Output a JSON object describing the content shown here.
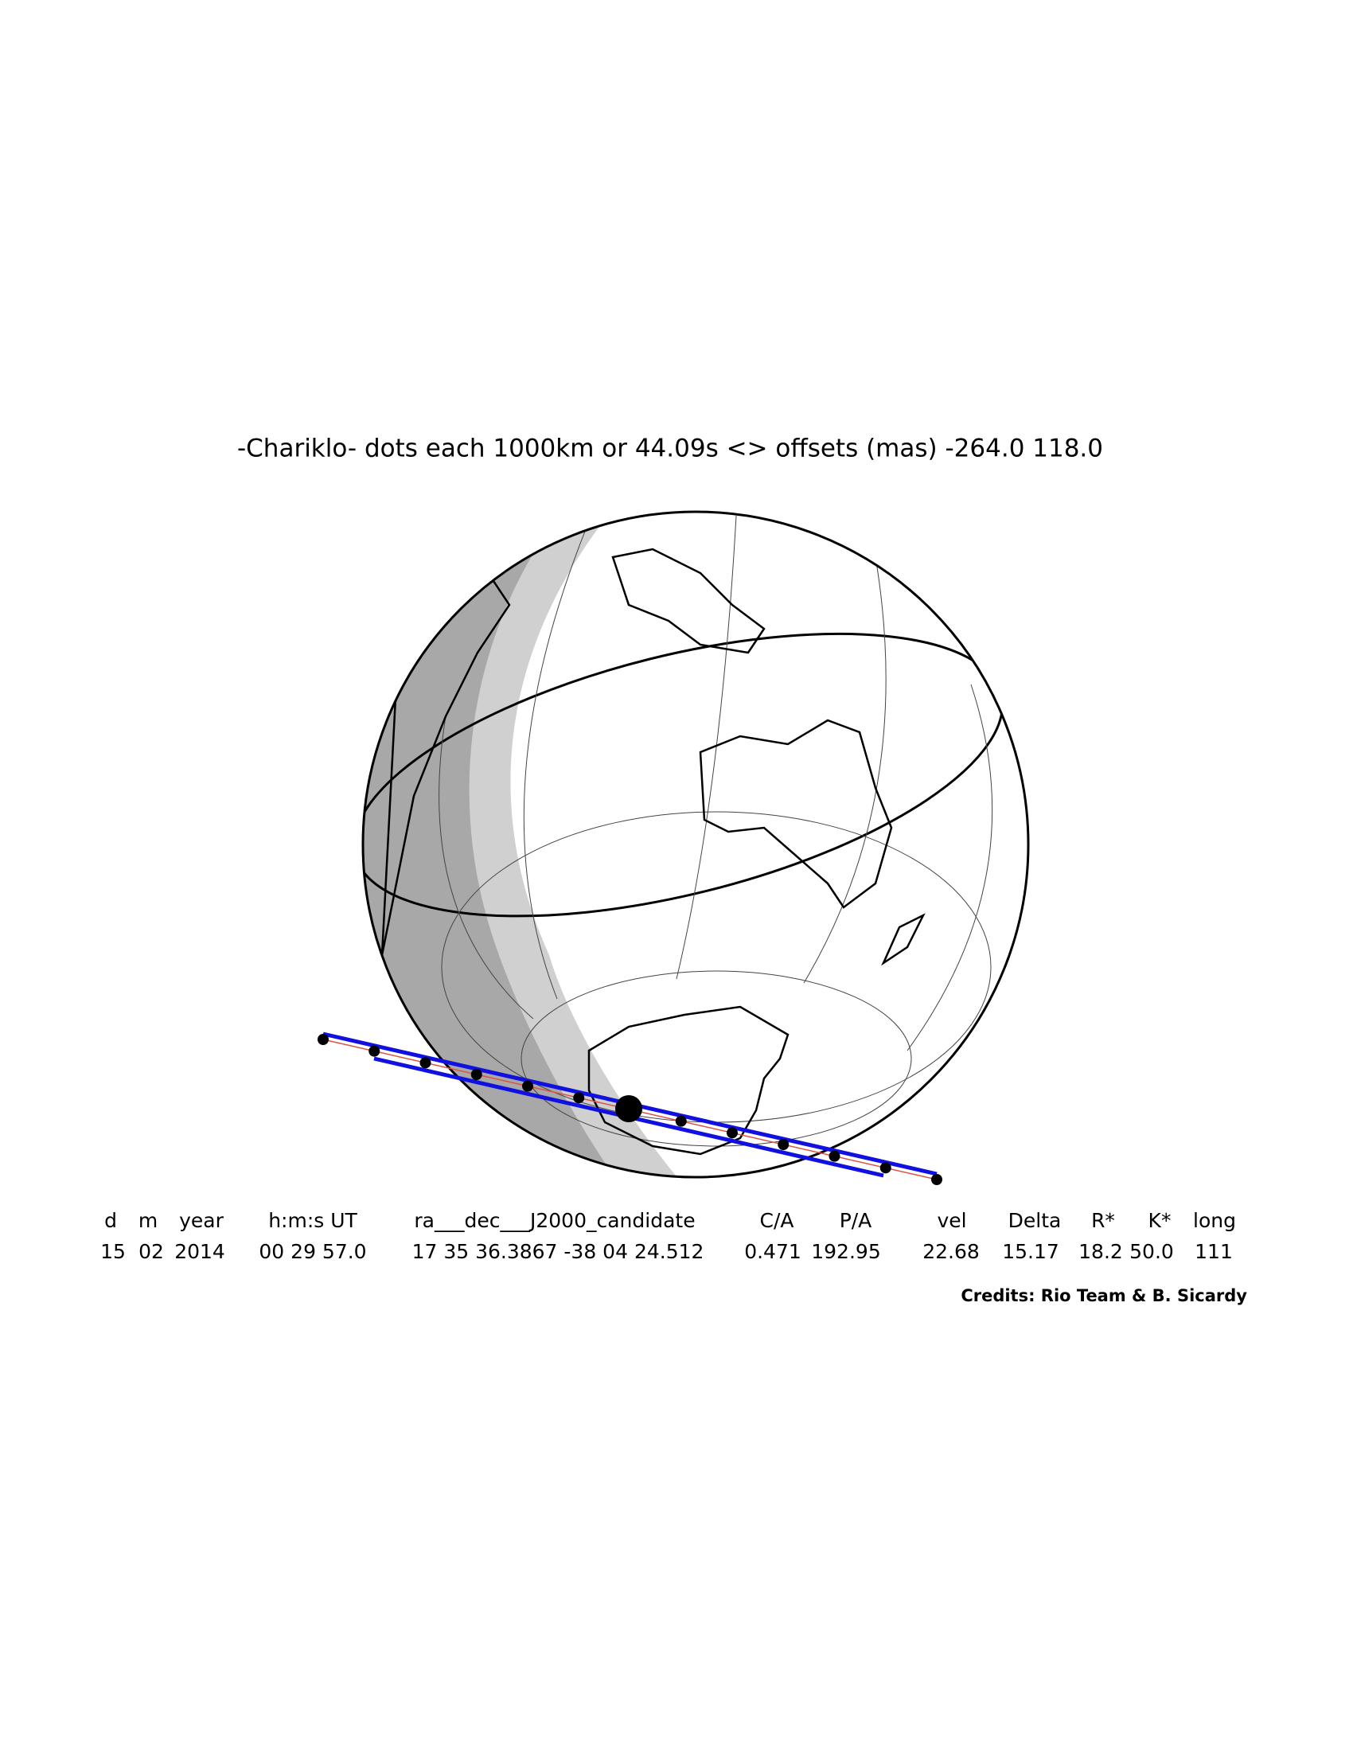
{
  "header": {
    "title": "-Chariklo- dots each 1000km or 44.09s <> offsets (mas) -264.0  118.0"
  },
  "table": {
    "columns": [
      "d",
      "m",
      "year",
      "h:m:s UT",
      "ra___dec___J2000_candidate",
      "C/A",
      "P/A",
      "vel",
      "Delta",
      "R*",
      "K*",
      "long"
    ],
    "values": [
      "15",
      "02",
      "2014",
      "00 29 57.0",
      "17 35 36.3867 -38 04 24.512",
      "0.471",
      "192.95",
      "22.68",
      "15.17",
      "18.2",
      "50.0",
      "111"
    ]
  },
  "credits": "Credits: Rio Team & B. Sicardy"
}
